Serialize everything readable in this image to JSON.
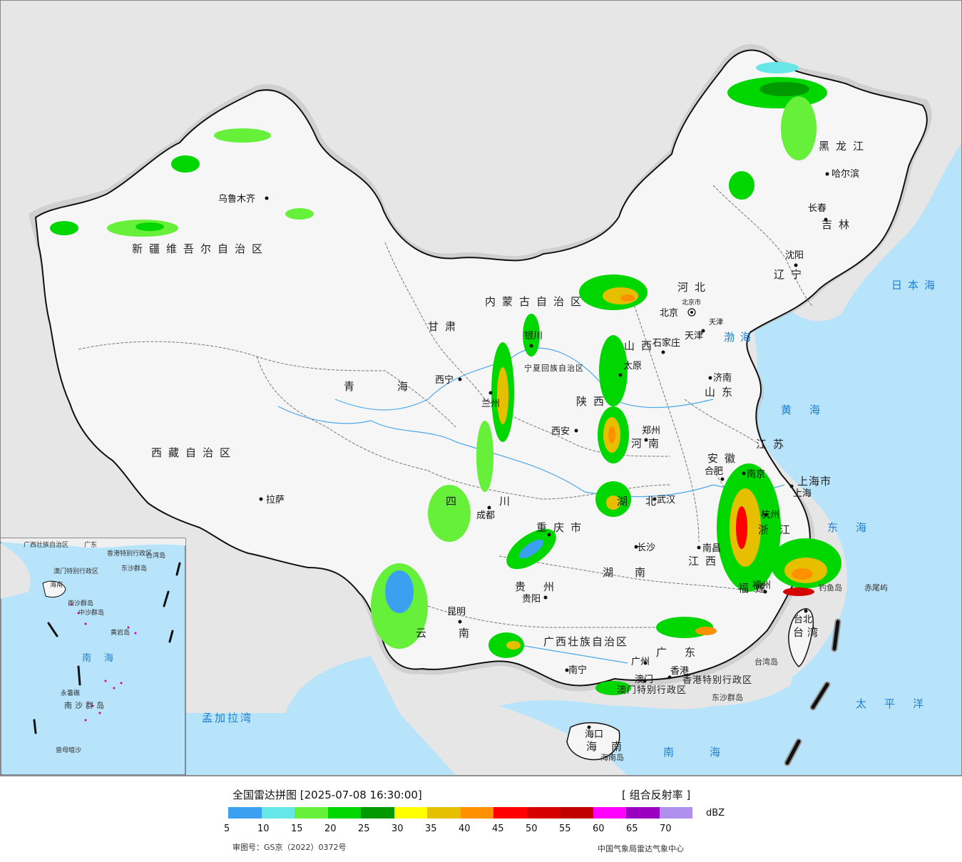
{
  "title": "全国雷达拼图 [2025-07-08 16:30:00]",
  "product": "[ 组合反射率 ]",
  "unit": "dBZ",
  "approval": "审图号：GS京（2022）0372号",
  "credit": "中国气象局雷达气象中心",
  "legend": {
    "colors": [
      "#3ba0ef",
      "#66e6e6",
      "#66f03a",
      "#00d600",
      "#009900",
      "#ffff00",
      "#e6c000",
      "#ff9000",
      "#ff0000",
      "#d60000",
      "#c00000",
      "#ff00ff",
      "#9900c0",
      "#b090ee"
    ],
    "ticks": [
      "5",
      "10",
      "15",
      "20",
      "25",
      "30",
      "35",
      "40",
      "45",
      "50",
      "55",
      "60",
      "65",
      "70"
    ]
  },
  "provinces": [
    "新疆维吾尔自治区",
    "西藏自治区",
    "青海",
    "甘肃",
    "内蒙古自治区",
    "黑龙江",
    "吉林",
    "辽宁",
    "河北",
    "山西",
    "山东",
    "河南",
    "陕西",
    "宁夏回族自治区",
    "四川",
    "重庆市",
    "贵州",
    "云南",
    "广西壮族自治区",
    "湖北",
    "湖南",
    "江西",
    "安徽",
    "江苏",
    "上海市",
    "浙江",
    "福建",
    "广东",
    "海南",
    "台湾",
    "北京市",
    "天津",
    "香港特别行政区",
    "澳门特别行政区"
  ],
  "cities": [
    "乌鲁木齐",
    "拉萨",
    "西宁",
    "兰州",
    "银川",
    "西安",
    "成都",
    "重庆",
    "贵阳",
    "昆明",
    "南宁",
    "广州",
    "香港",
    "澳门",
    "海口",
    "长沙",
    "武汉",
    "南昌",
    "福州",
    "杭州",
    "上海",
    "南京",
    "合肥",
    "郑州",
    "济南",
    "石家庄",
    "太原",
    "北京",
    "天津",
    "沈阳",
    "长春",
    "哈尔滨",
    "台北"
  ],
  "seas": [
    "日本海",
    "渤海",
    "黄海",
    "东海",
    "太平洋",
    "南海",
    "孟加拉湾"
  ],
  "islands": [
    "钓鱼岛",
    "赤尾屿",
    "台湾岛",
    "海南岛",
    "东沙群岛"
  ],
  "inset": {
    "labels": [
      "广西壮族自治区",
      "广东",
      "海南",
      "香港特别行政区",
      "澳门特别行政区",
      "东沙群岛",
      "西沙群岛",
      "中沙群岛",
      "黄岩岛",
      "永暑礁",
      "南沙群岛",
      "曾母暗沙",
      "南海",
      "台湾岛"
    ]
  },
  "colors": {
    "land": "#f6f6f6",
    "sea": "#b8e4fb",
    "foreign": "#e6e6e6",
    "border": "#111111"
  }
}
